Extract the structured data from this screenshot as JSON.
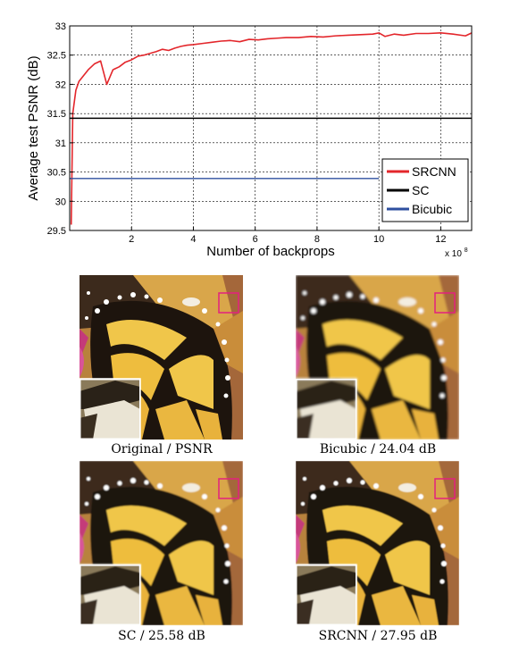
{
  "chart_data": {
    "type": "line",
    "xlabel": "Number of backprops",
    "ylabel": "Average test PSNR (dB)",
    "x_multiplier_label": "x 10",
    "x_multiplier_exponent": "8",
    "xlim": [
      0,
      13
    ],
    "ylim": [
      29.5,
      33
    ],
    "x_ticks": [
      2,
      4,
      6,
      8,
      10,
      12
    ],
    "y_ticks": [
      29.5,
      30,
      30.5,
      31,
      31.5,
      32,
      32.5,
      33
    ],
    "y_tick_labels": [
      "29.5",
      "30",
      "30.5",
      "31",
      "31.5",
      "32",
      "32.5",
      "33"
    ],
    "grid": true,
    "legend_position": "bottom-right",
    "series": [
      {
        "name": "SRCNN",
        "color": "#e3262b",
        "x": [
          0.05,
          0.1,
          0.2,
          0.3,
          0.45,
          0.6,
          0.8,
          1.0,
          1.05,
          1.2,
          1.4,
          1.6,
          1.8,
          2.0,
          2.2,
          2.4,
          2.6,
          2.8,
          3.0,
          3.2,
          3.4,
          3.6,
          3.8,
          4.0,
          4.3,
          4.6,
          4.9,
          5.2,
          5.5,
          5.8,
          6.1,
          6.4,
          6.7,
          7.0,
          7.4,
          7.8,
          8.2,
          8.6,
          9.0,
          9.4,
          9.8,
          10.0,
          10.2,
          10.5,
          10.8,
          11.2,
          11.6,
          12.0,
          12.4,
          12.8,
          13.0
        ],
        "values": [
          29.6,
          31.5,
          31.9,
          32.05,
          32.15,
          32.25,
          32.35,
          32.4,
          32.3,
          32.0,
          32.25,
          32.3,
          32.38,
          32.42,
          32.48,
          32.5,
          32.53,
          32.56,
          32.6,
          32.58,
          32.62,
          32.65,
          32.67,
          32.68,
          32.7,
          32.72,
          32.74,
          32.75,
          32.73,
          32.77,
          32.76,
          32.78,
          32.79,
          32.8,
          32.8,
          32.82,
          32.81,
          32.83,
          32.84,
          32.85,
          32.86,
          32.88,
          32.82,
          32.86,
          32.84,
          32.87,
          32.87,
          32.88,
          32.86,
          32.83,
          32.88
        ]
      },
      {
        "name": "SC",
        "color": "#000000",
        "x": [
          0,
          13
        ],
        "values": [
          31.42,
          31.42
        ]
      },
      {
        "name": "Bicubic",
        "color": "#2e4f9f",
        "x": [
          0,
          10
        ],
        "values": [
          30.39,
          30.39
        ]
      }
    ]
  },
  "figure_panels": [
    {
      "caption": "Original / PSNR"
    },
    {
      "caption": "Bicubic / 24.04 dB"
    },
    {
      "caption": "SC / 25.58 dB"
    },
    {
      "caption": "SRCNN / 27.95 dB"
    }
  ]
}
